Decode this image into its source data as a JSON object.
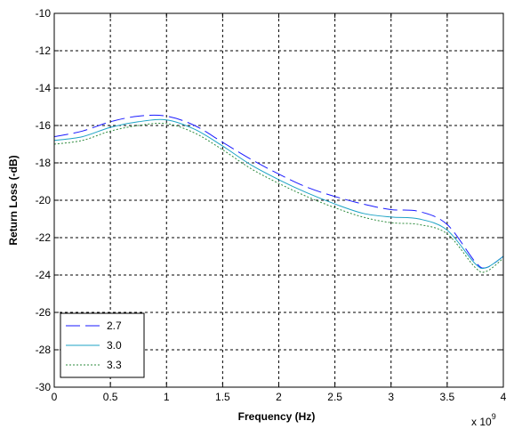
{
  "chart_data": {
    "type": "line",
    "xlabel": "Frequency (Hz)",
    "ylabel": "Return Loss (-dB)",
    "x_multiplier_label": "x 10",
    "x_multiplier_exponent": "9",
    "xlim": [
      0,
      4
    ],
    "ylim": [
      -30,
      -10
    ],
    "xticks": [
      0,
      0.5,
      1,
      1.5,
      2,
      2.5,
      3,
      3.5,
      4
    ],
    "yticks": [
      -30,
      -28,
      -26,
      -24,
      -22,
      -20,
      -18,
      -16,
      -14,
      -12,
      -10
    ],
    "xtick_labels": [
      "0",
      "0.5",
      "1",
      "1.5",
      "2",
      "2.5",
      "3",
      "3.5",
      "4"
    ],
    "ytick_labels": [
      "-30",
      "-28",
      "-26",
      "-24",
      "-22",
      "-20",
      "-18",
      "-16",
      "-14",
      "-12",
      "-10"
    ],
    "grid": true,
    "legend_position": "bottom-left",
    "x": [
      0,
      0.25,
      0.5,
      0.75,
      1.0,
      1.25,
      1.5,
      1.75,
      2.0,
      2.25,
      2.5,
      2.75,
      3.0,
      3.25,
      3.5,
      3.75,
      3.85,
      4.0
    ],
    "series": [
      {
        "name": "2.7",
        "color": "#1a1aff",
        "dash": "long-dash",
        "values": [
          -16.6,
          -16.3,
          -15.8,
          -15.5,
          -15.5,
          -16.0,
          -16.9,
          -17.8,
          -18.6,
          -19.3,
          -19.8,
          -20.2,
          -20.5,
          -20.6,
          -21.3,
          -23.3,
          -23.6,
          -23.0
        ]
      },
      {
        "name": "3.0",
        "color": "#1ca3c4",
        "dash": "solid",
        "values": [
          -16.8,
          -16.6,
          -16.1,
          -15.8,
          -15.7,
          -16.2,
          -17.1,
          -18.1,
          -18.9,
          -19.6,
          -20.2,
          -20.7,
          -20.9,
          -21.0,
          -21.6,
          -23.4,
          -23.6,
          -23.0
        ]
      },
      {
        "name": "3.3",
        "color": "#2e8b3d",
        "dash": "dotted",
        "values": [
          -17.0,
          -16.8,
          -16.3,
          -16.0,
          -15.9,
          -16.4,
          -17.3,
          -18.3,
          -19.1,
          -19.8,
          -20.4,
          -20.9,
          -21.2,
          -21.3,
          -21.8,
          -23.6,
          -23.8,
          -23.1
        ]
      }
    ]
  }
}
